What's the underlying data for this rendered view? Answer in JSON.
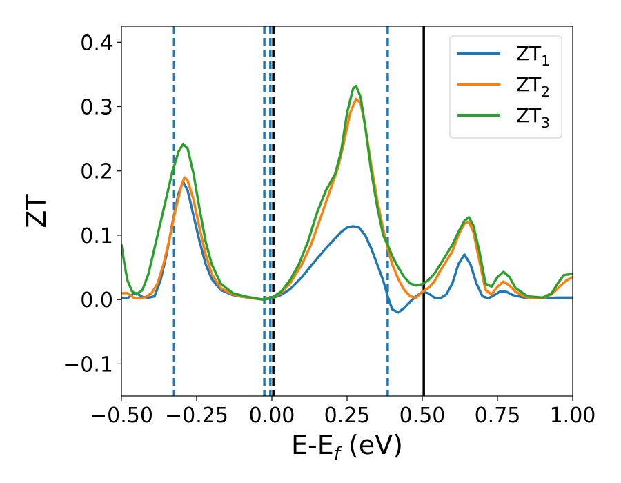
{
  "chart_data": {
    "type": "line",
    "xlabel": "E-E",
    "xlabel_sub": "f",
    "xlabel_unit": " (eV)",
    "ylabel": "ZT",
    "xlim": [
      -0.5,
      1.0
    ],
    "ylim": [
      -0.15,
      0.425
    ],
    "xticks": [
      -0.5,
      -0.25,
      0.0,
      0.25,
      0.5,
      0.75,
      1.0
    ],
    "xtick_labels": [
      "−0.50",
      "−0.25",
      "0.00",
      "0.25",
      "0.50",
      "0.75",
      "1.00"
    ],
    "yticks": [
      -0.1,
      0.0,
      0.1,
      0.2,
      0.3,
      0.4
    ],
    "ytick_labels": [
      "−0.1",
      "0.0",
      "0.1",
      "0.2",
      "0.3",
      "0.4"
    ],
    "grid": false,
    "legend_position": "top-right",
    "vlines": [
      {
        "x": -0.325,
        "style": "dashed",
        "color": "#1f77b4"
      },
      {
        "x": -0.025,
        "style": "dashed",
        "color": "#1f77b4"
      },
      {
        "x": -0.005,
        "style": "dashed",
        "color": "#1f77b4"
      },
      {
        "x": 0.005,
        "style": "dashed",
        "color": "#000000"
      },
      {
        "x": 0.385,
        "style": "dashed",
        "color": "#1f77b4"
      },
      {
        "x": 0.505,
        "style": "solid",
        "color": "#000000"
      }
    ],
    "series": [
      {
        "name": "ZT",
        "subscript": "1",
        "color": "#1f77b4",
        "points": [
          [
            -0.5,
            0.003
          ],
          [
            -0.48,
            0.002
          ],
          [
            -0.46,
            0.009
          ],
          [
            -0.45,
            0.01
          ],
          [
            -0.43,
            0.004
          ],
          [
            -0.41,
            0.003
          ],
          [
            -0.39,
            0.005
          ],
          [
            -0.37,
            0.03
          ],
          [
            -0.35,
            0.07
          ],
          [
            -0.33,
            0.12
          ],
          [
            -0.31,
            0.165
          ],
          [
            -0.295,
            0.183
          ],
          [
            -0.28,
            0.17
          ],
          [
            -0.26,
            0.13
          ],
          [
            -0.24,
            0.09
          ],
          [
            -0.22,
            0.055
          ],
          [
            -0.2,
            0.032
          ],
          [
            -0.17,
            0.015
          ],
          [
            -0.13,
            0.007
          ],
          [
            -0.08,
            0.003
          ],
          [
            -0.03,
            0.0
          ],
          [
            0.0,
            0.002
          ],
          [
            0.03,
            0.007
          ],
          [
            0.06,
            0.016
          ],
          [
            0.1,
            0.035
          ],
          [
            0.14,
            0.058
          ],
          [
            0.18,
            0.08
          ],
          [
            0.21,
            0.095
          ],
          [
            0.23,
            0.105
          ],
          [
            0.25,
            0.112
          ],
          [
            0.27,
            0.114
          ],
          [
            0.29,
            0.112
          ],
          [
            0.31,
            0.1
          ],
          [
            0.33,
            0.08
          ],
          [
            0.35,
            0.055
          ],
          [
            0.37,
            0.03
          ],
          [
            0.385,
            0.005
          ],
          [
            0.4,
            -0.015
          ],
          [
            0.42,
            -0.02
          ],
          [
            0.44,
            -0.013
          ],
          [
            0.46,
            -0.003
          ],
          [
            0.48,
            0.005
          ],
          [
            0.5,
            0.012
          ],
          [
            0.52,
            0.01
          ],
          [
            0.54,
            0.003
          ],
          [
            0.56,
            0.002
          ],
          [
            0.58,
            0.008
          ],
          [
            0.6,
            0.025
          ],
          [
            0.62,
            0.055
          ],
          [
            0.64,
            0.07
          ],
          [
            0.66,
            0.055
          ],
          [
            0.68,
            0.025
          ],
          [
            0.7,
            0.005
          ],
          [
            0.72,
            0.002
          ],
          [
            0.74,
            0.007
          ],
          [
            0.76,
            0.013
          ],
          [
            0.78,
            0.012
          ],
          [
            0.8,
            0.007
          ],
          [
            0.84,
            0.003
          ],
          [
            0.9,
            0.002
          ],
          [
            0.95,
            0.003
          ],
          [
            1.0,
            0.003
          ]
        ]
      },
      {
        "name": "ZT",
        "subscript": "2",
        "color": "#ff7f0e",
        "points": [
          [
            -0.5,
            0.01
          ],
          [
            -0.48,
            0.01
          ],
          [
            -0.46,
            0.003
          ],
          [
            -0.44,
            0.002
          ],
          [
            -0.42,
            0.004
          ],
          [
            -0.4,
            0.01
          ],
          [
            -0.38,
            0.025
          ],
          [
            -0.36,
            0.055
          ],
          [
            -0.34,
            0.095
          ],
          [
            -0.32,
            0.14
          ],
          [
            -0.3,
            0.178
          ],
          [
            -0.29,
            0.19
          ],
          [
            -0.28,
            0.185
          ],
          [
            -0.26,
            0.155
          ],
          [
            -0.24,
            0.11
          ],
          [
            -0.22,
            0.07
          ],
          [
            -0.2,
            0.04
          ],
          [
            -0.17,
            0.018
          ],
          [
            -0.13,
            0.008
          ],
          [
            -0.08,
            0.003
          ],
          [
            -0.03,
            0.0
          ],
          [
            0.0,
            0.003
          ],
          [
            0.03,
            0.01
          ],
          [
            0.06,
            0.025
          ],
          [
            0.1,
            0.055
          ],
          [
            0.13,
            0.085
          ],
          [
            0.16,
            0.125
          ],
          [
            0.19,
            0.165
          ],
          [
            0.22,
            0.205
          ],
          [
            0.24,
            0.245
          ],
          [
            0.26,
            0.29
          ],
          [
            0.28,
            0.312
          ],
          [
            0.295,
            0.305
          ],
          [
            0.31,
            0.27
          ],
          [
            0.33,
            0.21
          ],
          [
            0.35,
            0.155
          ],
          [
            0.37,
            0.11
          ],
          [
            0.385,
            0.08
          ],
          [
            0.4,
            0.055
          ],
          [
            0.42,
            0.032
          ],
          [
            0.44,
            0.015
          ],
          [
            0.46,
            0.005
          ],
          [
            0.48,
            0.003
          ],
          [
            0.5,
            0.012
          ],
          [
            0.52,
            0.018
          ],
          [
            0.54,
            0.028
          ],
          [
            0.56,
            0.045
          ],
          [
            0.58,
            0.06
          ],
          [
            0.6,
            0.075
          ],
          [
            0.62,
            0.1
          ],
          [
            0.64,
            0.118
          ],
          [
            0.655,
            0.12
          ],
          [
            0.67,
            0.105
          ],
          [
            0.69,
            0.06
          ],
          [
            0.71,
            0.015
          ],
          [
            0.73,
            0.008
          ],
          [
            0.75,
            0.02
          ],
          [
            0.77,
            0.028
          ],
          [
            0.79,
            0.022
          ],
          [
            0.81,
            0.012
          ],
          [
            0.85,
            0.003
          ],
          [
            0.9,
            0.002
          ],
          [
            0.93,
            0.008
          ],
          [
            0.96,
            0.022
          ],
          [
            0.98,
            0.03
          ],
          [
            1.0,
            0.035
          ]
        ]
      },
      {
        "name": "ZT",
        "subscript": "3",
        "color": "#2ca02c",
        "points": [
          [
            -0.5,
            0.085
          ],
          [
            -0.49,
            0.055
          ],
          [
            -0.48,
            0.03
          ],
          [
            -0.465,
            0.013
          ],
          [
            -0.45,
            0.008
          ],
          [
            -0.43,
            0.015
          ],
          [
            -0.41,
            0.04
          ],
          [
            -0.39,
            0.08
          ],
          [
            -0.37,
            0.12
          ],
          [
            -0.35,
            0.16
          ],
          [
            -0.33,
            0.2
          ],
          [
            -0.31,
            0.23
          ],
          [
            -0.295,
            0.242
          ],
          [
            -0.28,
            0.235
          ],
          [
            -0.26,
            0.195
          ],
          [
            -0.24,
            0.14
          ],
          [
            -0.22,
            0.09
          ],
          [
            -0.2,
            0.055
          ],
          [
            -0.17,
            0.025
          ],
          [
            -0.13,
            0.01
          ],
          [
            -0.08,
            0.004
          ],
          [
            -0.03,
            0.0
          ],
          [
            0.0,
            0.003
          ],
          [
            0.03,
            0.012
          ],
          [
            0.06,
            0.03
          ],
          [
            0.09,
            0.055
          ],
          [
            0.12,
            0.09
          ],
          [
            0.15,
            0.135
          ],
          [
            0.18,
            0.17
          ],
          [
            0.21,
            0.195
          ],
          [
            0.23,
            0.23
          ],
          [
            0.25,
            0.29
          ],
          [
            0.27,
            0.328
          ],
          [
            0.28,
            0.332
          ],
          [
            0.295,
            0.315
          ],
          [
            0.31,
            0.27
          ],
          [
            0.33,
            0.2
          ],
          [
            0.35,
            0.145
          ],
          [
            0.37,
            0.1
          ],
          [
            0.385,
            0.085
          ],
          [
            0.4,
            0.068
          ],
          [
            0.42,
            0.05
          ],
          [
            0.44,
            0.035
          ],
          [
            0.46,
            0.025
          ],
          [
            0.48,
            0.022
          ],
          [
            0.5,
            0.024
          ],
          [
            0.52,
            0.03
          ],
          [
            0.54,
            0.04
          ],
          [
            0.56,
            0.055
          ],
          [
            0.58,
            0.07
          ],
          [
            0.6,
            0.085
          ],
          [
            0.62,
            0.105
          ],
          [
            0.64,
            0.122
          ],
          [
            0.655,
            0.128
          ],
          [
            0.67,
            0.115
          ],
          [
            0.69,
            0.075
          ],
          [
            0.71,
            0.025
          ],
          [
            0.73,
            0.02
          ],
          [
            0.75,
            0.035
          ],
          [
            0.77,
            0.043
          ],
          [
            0.79,
            0.035
          ],
          [
            0.81,
            0.018
          ],
          [
            0.85,
            0.005
          ],
          [
            0.9,
            0.003
          ],
          [
            0.93,
            0.01
          ],
          [
            0.95,
            0.025
          ],
          [
            0.97,
            0.038
          ],
          [
            1.0,
            0.04
          ]
        ]
      }
    ]
  }
}
